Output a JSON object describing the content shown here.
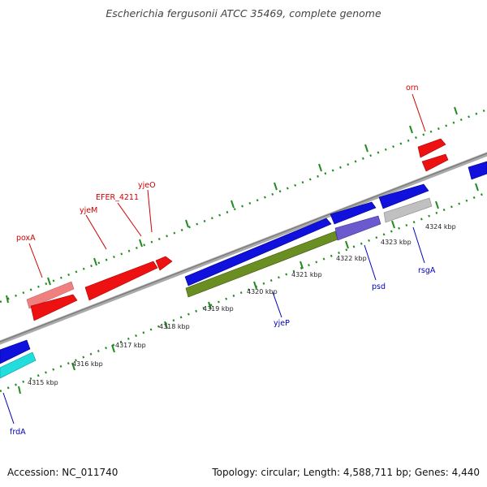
{
  "title": "Escherichia fergusonii ATCC 35469, complete genome",
  "footer": {
    "accession": "Accession: NC_011740",
    "stats": "Topology: circular; Length: 4,588,711 bp; Genes: 4,440"
  },
  "colors": {
    "backbone": "#888888",
    "ticks": "#228b22",
    "red_gene": "#ee1111",
    "pink_gene": "#f08080",
    "blue_gene": "#1111dd",
    "olive_gene": "#6b8e23",
    "cyan_gene": "#22dddd",
    "slate_gene": "#6a5acd",
    "gray_gene": "#c0c0c0",
    "red_label": "#cc0000",
    "blue_label": "#0000bb"
  },
  "tick_labels": [
    "4315 kbp",
    "4316 kbp",
    "4317 kbp",
    "4318 kbp",
    "4319 kbp",
    "4320 kbp",
    "4321 kbp",
    "4322 kbp",
    "4323 kbp",
    "4324 kbp"
  ],
  "gene_labels": {
    "frdA": "frdA",
    "poxA": "poxA",
    "yjeM": "yjeM",
    "EFER_4211": "EFER_4211",
    "yjeO": "yjeO",
    "orn": "orn",
    "yjeP": "yjeP",
    "psd": "psd",
    "rsgA": "rsgA"
  }
}
